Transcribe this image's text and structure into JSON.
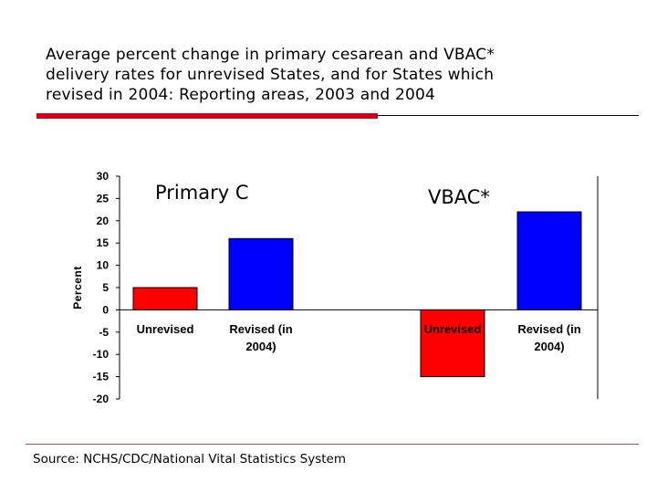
{
  "slide": {
    "title": "Average percent change in primary cesarean and VBAC*\ndelivery rates for unrevised States, and for States which\nrevised in 2004: Reporting areas,  2003 and 2004",
    "source": "Source: NCHS/CDC/National Vital Statistics System",
    "accent_color": "#d0021b"
  },
  "chart_data": {
    "type": "bar",
    "ylabel": "Percent",
    "ylim": [
      -20,
      30
    ],
    "yticks": [
      30,
      25,
      20,
      15,
      10,
      5,
      0,
      -5,
      -10,
      -15,
      -20
    ],
    "panels": [
      {
        "title": "Primary C",
        "categories": [
          "Unrevised",
          "Revised (in\n2004)"
        ],
        "values": [
          5,
          16
        ],
        "colors": [
          "#ff0000",
          "#0000ff"
        ]
      },
      {
        "title": "VBAC*",
        "categories": [
          "Unrevised",
          "Revised (in\n2004)"
        ],
        "values": [
          -15,
          22
        ],
        "colors": [
          "#ff0000",
          "#0000ff"
        ]
      }
    ]
  }
}
